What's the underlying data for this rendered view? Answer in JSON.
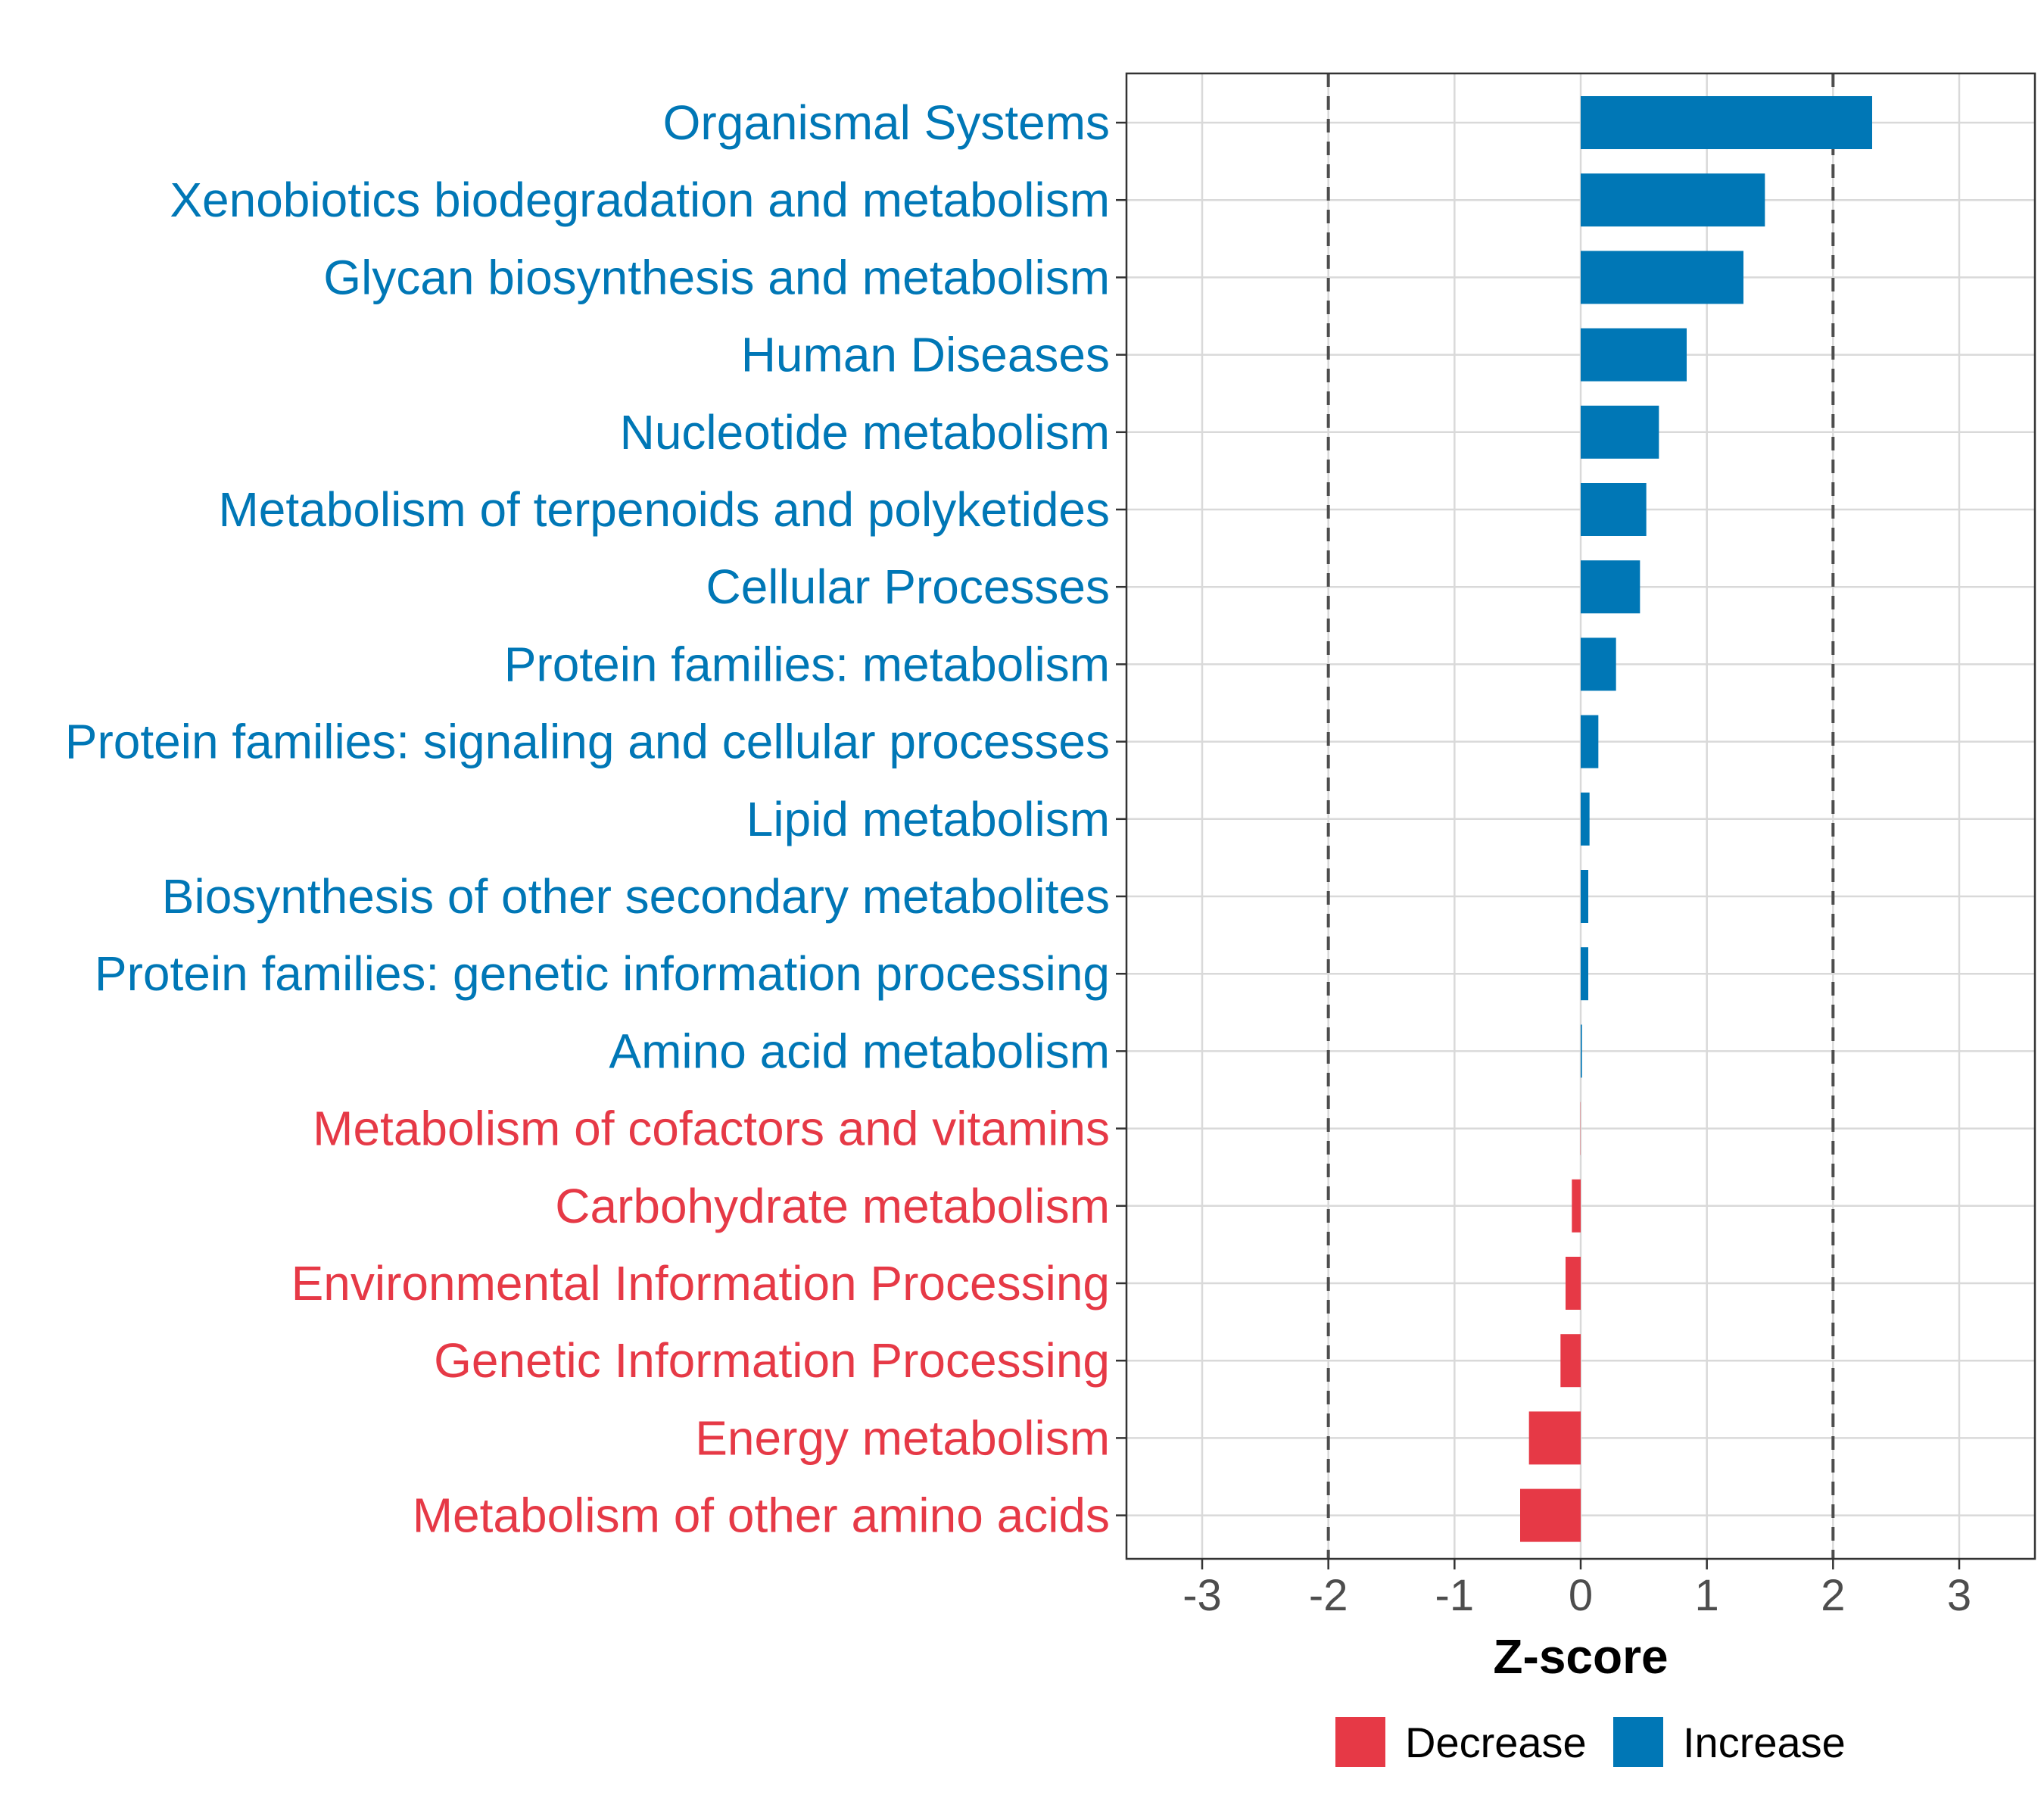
{
  "chart_data": {
    "type": "bar",
    "orientation": "horizontal",
    "xlabel": "Z-score",
    "ylabel": "",
    "xlim": [
      -3.6,
      3.6
    ],
    "xticks": [
      -3,
      -2,
      -1,
      0,
      1,
      2,
      3
    ],
    "reference_lines": [
      -2,
      2
    ],
    "grid": true,
    "legend_position": "bottom",
    "colors": {
      "Decrease": "#E63946",
      "Increase": "#0077B6"
    },
    "legend": [
      {
        "label": "Decrease",
        "color": "#E63946"
      },
      {
        "label": "Increase",
        "color": "#0077B6"
      }
    ],
    "categories": [
      "Organismal Systems",
      "Xenobiotics biodegradation and metabolism",
      "Glycan biosynthesis and metabolism",
      "Human Diseases",
      "Nucleotide metabolism",
      "Metabolism of terpenoids and polyketides",
      "Cellular Processes",
      "Protein families: metabolism",
      "Protein families: signaling and cellular processes",
      "Lipid metabolism",
      "Biosynthesis of other secondary metabolites",
      "Protein families: genetic information processing",
      "Amino acid metabolism",
      "Metabolism of cofactors and vitamins",
      "Carbohydrate metabolism",
      "Environmental Information Processing",
      "Genetic Information Processing",
      "Energy metabolism",
      "Metabolism of other amino acids"
    ],
    "values": [
      2.31,
      1.46,
      1.29,
      0.84,
      0.62,
      0.52,
      0.47,
      0.28,
      0.14,
      0.07,
      0.06,
      0.06,
      0.01,
      -0.002,
      -0.07,
      -0.12,
      -0.16,
      -0.41,
      -0.48
    ],
    "groups": [
      "Increase",
      "Increase",
      "Increase",
      "Increase",
      "Increase",
      "Increase",
      "Increase",
      "Increase",
      "Increase",
      "Increase",
      "Increase",
      "Increase",
      "Increase",
      "Decrease",
      "Decrease",
      "Decrease",
      "Decrease",
      "Decrease",
      "Decrease"
    ]
  }
}
